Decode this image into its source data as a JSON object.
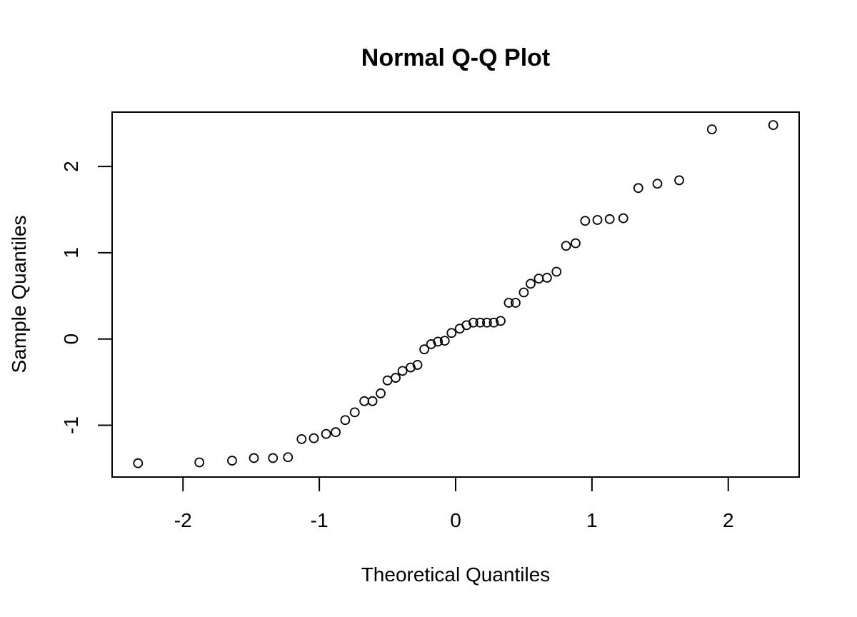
{
  "chart_data": {
    "type": "scatter",
    "title": "Normal Q-Q Plot",
    "xlabel": "Theoretical Quantiles",
    "ylabel": "Sample Quantiles",
    "xlim": [
      -2.52,
      2.52
    ],
    "ylim": [
      -1.6,
      2.63
    ],
    "x_ticks": [
      -2,
      -1,
      0,
      1,
      2
    ],
    "x_tick_labels": [
      "-2",
      "-1",
      "0",
      "1",
      "2"
    ],
    "y_ticks": [
      -1,
      0,
      1,
      2
    ],
    "y_tick_labels": [
      "-1",
      "0",
      "1",
      "2"
    ],
    "grid": false,
    "legend": "none",
    "marker": "open-circle",
    "points": [
      {
        "x": -2.33,
        "y": -1.44
      },
      {
        "x": -1.88,
        "y": -1.43
      },
      {
        "x": -1.64,
        "y": -1.41
      },
      {
        "x": -1.48,
        "y": -1.38
      },
      {
        "x": -1.34,
        "y": -1.38
      },
      {
        "x": -1.23,
        "y": -1.37
      },
      {
        "x": -1.13,
        "y": -1.16
      },
      {
        "x": -1.04,
        "y": -1.15
      },
      {
        "x": -0.95,
        "y": -1.1
      },
      {
        "x": -0.88,
        "y": -1.08
      },
      {
        "x": -0.81,
        "y": -0.94
      },
      {
        "x": -0.74,
        "y": -0.85
      },
      {
        "x": -0.67,
        "y": -0.72
      },
      {
        "x": -0.61,
        "y": -0.72
      },
      {
        "x": -0.55,
        "y": -0.63
      },
      {
        "x": -0.5,
        "y": -0.48
      },
      {
        "x": -0.44,
        "y": -0.45
      },
      {
        "x": -0.39,
        "y": -0.37
      },
      {
        "x": -0.33,
        "y": -0.33
      },
      {
        "x": -0.28,
        "y": -0.3
      },
      {
        "x": -0.23,
        "y": -0.12
      },
      {
        "x": -0.18,
        "y": -0.06
      },
      {
        "x": -0.13,
        "y": -0.03
      },
      {
        "x": -0.08,
        "y": -0.02
      },
      {
        "x": -0.03,
        "y": 0.07
      },
      {
        "x": 0.03,
        "y": 0.12
      },
      {
        "x": 0.08,
        "y": 0.16
      },
      {
        "x": 0.13,
        "y": 0.19
      },
      {
        "x": 0.18,
        "y": 0.19
      },
      {
        "x": 0.23,
        "y": 0.19
      },
      {
        "x": 0.28,
        "y": 0.19
      },
      {
        "x": 0.33,
        "y": 0.21
      },
      {
        "x": 0.39,
        "y": 0.42
      },
      {
        "x": 0.44,
        "y": 0.42
      },
      {
        "x": 0.5,
        "y": 0.54
      },
      {
        "x": 0.55,
        "y": 0.64
      },
      {
        "x": 0.61,
        "y": 0.7
      },
      {
        "x": 0.67,
        "y": 0.71
      },
      {
        "x": 0.74,
        "y": 0.78
      },
      {
        "x": 0.81,
        "y": 1.08
      },
      {
        "x": 0.88,
        "y": 1.11
      },
      {
        "x": 0.95,
        "y": 1.37
      },
      {
        "x": 1.04,
        "y": 1.38
      },
      {
        "x": 1.13,
        "y": 1.39
      },
      {
        "x": 1.23,
        "y": 1.4
      },
      {
        "x": 1.34,
        "y": 1.75
      },
      {
        "x": 1.48,
        "y": 1.8
      },
      {
        "x": 1.64,
        "y": 1.84
      },
      {
        "x": 1.88,
        "y": 2.43
      },
      {
        "x": 2.33,
        "y": 2.48
      }
    ]
  }
}
